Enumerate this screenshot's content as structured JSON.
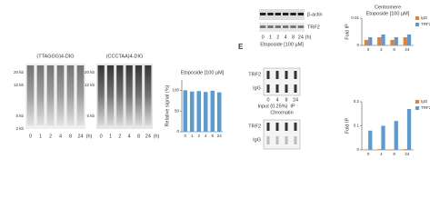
{
  "blots": [
    {
      "probe": "(TTAGGG)4-DIG",
      "markers": [
        "20 kb",
        "12 kb",
        "5 kb",
        "2 kb"
      ],
      "lanes": [
        "0",
        "1",
        "2",
        "4",
        "8",
        "24",
        "(h)"
      ]
    },
    {
      "probe": "(CCCTAA)4-DIG",
      "markers": [
        "20 kb",
        "12 kb",
        "5 kb"
      ],
      "lanes": [
        "0",
        "1",
        "2",
        "4",
        "8",
        "24",
        "(h)"
      ]
    }
  ],
  "western": {
    "panel": "E",
    "treatment": "Etoposide [100 µM]",
    "bands": [
      "β-actin",
      "TRF2"
    ],
    "lanes": [
      "0",
      "1",
      "2",
      "4",
      "8",
      "24",
      "(h)"
    ]
  },
  "chip": {
    "title": "Chromatin",
    "input": "Input (0.25%)",
    "ip": "IP",
    "antibodies": [
      "TRF2",
      "IgG"
    ],
    "lanes": [
      "0",
      "4",
      "8",
      "24"
    ]
  },
  "chart_data": [
    {
      "type": "bar",
      "title": "Etoposide [100 µM]",
      "y_label": "Relative signal (%)",
      "categories": [
        "0",
        "1",
        "2",
        "4",
        "8",
        "24"
      ],
      "values": [
        100,
        97,
        98,
        96,
        99,
        95
      ],
      "color": "#5b9bd5",
      "ylim": [
        0,
        125
      ],
      "yticks": [
        0,
        50,
        100
      ]
    },
    {
      "type": "bar",
      "title": "Centromere",
      "subtitle": "Etoposide [100 µM]",
      "y_label": "Fold IP",
      "categories": [
        "0",
        "4",
        "8",
        "24"
      ],
      "series": [
        {
          "name": "IgG",
          "color": "#ed7d31",
          "values": [
            0.002,
            0.003,
            0.002,
            0.003
          ]
        },
        {
          "name": "TRF2",
          "color": "#5b9bd5",
          "values": [
            0.003,
            0.004,
            0.003,
            0.004
          ]
        }
      ],
      "ylim": [
        0,
        0.01
      ],
      "yticks": [
        0,
        0.01
      ]
    },
    {
      "type": "bar",
      "y_label": "Fold IP",
      "categories": [
        "0",
        "4",
        "8",
        "24"
      ],
      "series": [
        {
          "name": "IgG",
          "color": "#ed7d31",
          "values": [
            0.002,
            0.003,
            0.002,
            0.003
          ]
        },
        {
          "name": "TRF2",
          "color": "#5b9bd5",
          "values": [
            0.08,
            0.1,
            0.12,
            0.17
          ]
        }
      ],
      "ylim": [
        0,
        0.2
      ],
      "yticks": [
        0,
        0.1,
        0.2
      ]
    }
  ]
}
